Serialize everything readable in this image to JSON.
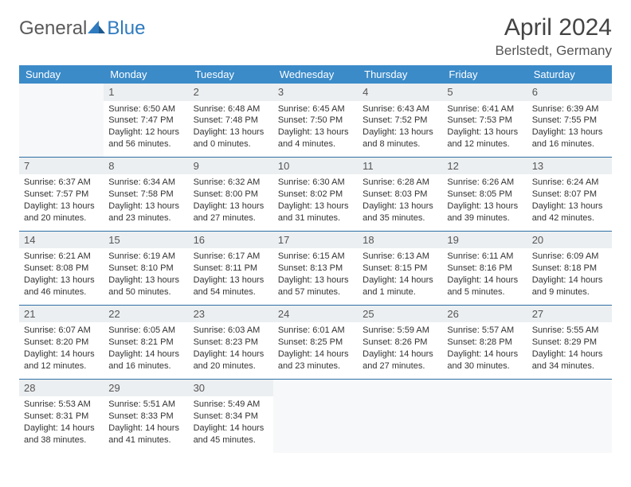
{
  "logo": {
    "text1": "General",
    "text2": "Blue"
  },
  "title": "April 2024",
  "location": "Berlstedt, Germany",
  "colors": {
    "header_bg": "#3b8bc9",
    "header_text": "#ffffff",
    "row_border": "#2f6fa5",
    "daynum_bg": "#eceff1",
    "logo_gray": "#5a5a5a",
    "logo_blue": "#2f7bbf",
    "page_bg": "#ffffff"
  },
  "daysOfWeek": [
    "Sunday",
    "Monday",
    "Tuesday",
    "Wednesday",
    "Thursday",
    "Friday",
    "Saturday"
  ],
  "weeks": [
    [
      null,
      {
        "n": "1",
        "sr": "6:50 AM",
        "ss": "7:47 PM",
        "dl": "12 hours and 56 minutes."
      },
      {
        "n": "2",
        "sr": "6:48 AM",
        "ss": "7:48 PM",
        "dl": "13 hours and 0 minutes."
      },
      {
        "n": "3",
        "sr": "6:45 AM",
        "ss": "7:50 PM",
        "dl": "13 hours and 4 minutes."
      },
      {
        "n": "4",
        "sr": "6:43 AM",
        "ss": "7:52 PM",
        "dl": "13 hours and 8 minutes."
      },
      {
        "n": "5",
        "sr": "6:41 AM",
        "ss": "7:53 PM",
        "dl": "13 hours and 12 minutes."
      },
      {
        "n": "6",
        "sr": "6:39 AM",
        "ss": "7:55 PM",
        "dl": "13 hours and 16 minutes."
      }
    ],
    [
      {
        "n": "7",
        "sr": "6:37 AM",
        "ss": "7:57 PM",
        "dl": "13 hours and 20 minutes."
      },
      {
        "n": "8",
        "sr": "6:34 AM",
        "ss": "7:58 PM",
        "dl": "13 hours and 23 minutes."
      },
      {
        "n": "9",
        "sr": "6:32 AM",
        "ss": "8:00 PM",
        "dl": "13 hours and 27 minutes."
      },
      {
        "n": "10",
        "sr": "6:30 AM",
        "ss": "8:02 PM",
        "dl": "13 hours and 31 minutes."
      },
      {
        "n": "11",
        "sr": "6:28 AM",
        "ss": "8:03 PM",
        "dl": "13 hours and 35 minutes."
      },
      {
        "n": "12",
        "sr": "6:26 AM",
        "ss": "8:05 PM",
        "dl": "13 hours and 39 minutes."
      },
      {
        "n": "13",
        "sr": "6:24 AM",
        "ss": "8:07 PM",
        "dl": "13 hours and 42 minutes."
      }
    ],
    [
      {
        "n": "14",
        "sr": "6:21 AM",
        "ss": "8:08 PM",
        "dl": "13 hours and 46 minutes."
      },
      {
        "n": "15",
        "sr": "6:19 AM",
        "ss": "8:10 PM",
        "dl": "13 hours and 50 minutes."
      },
      {
        "n": "16",
        "sr": "6:17 AM",
        "ss": "8:11 PM",
        "dl": "13 hours and 54 minutes."
      },
      {
        "n": "17",
        "sr": "6:15 AM",
        "ss": "8:13 PM",
        "dl": "13 hours and 57 minutes."
      },
      {
        "n": "18",
        "sr": "6:13 AM",
        "ss": "8:15 PM",
        "dl": "14 hours and 1 minute."
      },
      {
        "n": "19",
        "sr": "6:11 AM",
        "ss": "8:16 PM",
        "dl": "14 hours and 5 minutes."
      },
      {
        "n": "20",
        "sr": "6:09 AM",
        "ss": "8:18 PM",
        "dl": "14 hours and 9 minutes."
      }
    ],
    [
      {
        "n": "21",
        "sr": "6:07 AM",
        "ss": "8:20 PM",
        "dl": "14 hours and 12 minutes."
      },
      {
        "n": "22",
        "sr": "6:05 AM",
        "ss": "8:21 PM",
        "dl": "14 hours and 16 minutes."
      },
      {
        "n": "23",
        "sr": "6:03 AM",
        "ss": "8:23 PM",
        "dl": "14 hours and 20 minutes."
      },
      {
        "n": "24",
        "sr": "6:01 AM",
        "ss": "8:25 PM",
        "dl": "14 hours and 23 minutes."
      },
      {
        "n": "25",
        "sr": "5:59 AM",
        "ss": "8:26 PM",
        "dl": "14 hours and 27 minutes."
      },
      {
        "n": "26",
        "sr": "5:57 AM",
        "ss": "8:28 PM",
        "dl": "14 hours and 30 minutes."
      },
      {
        "n": "27",
        "sr": "5:55 AM",
        "ss": "8:29 PM",
        "dl": "14 hours and 34 minutes."
      }
    ],
    [
      {
        "n": "28",
        "sr": "5:53 AM",
        "ss": "8:31 PM",
        "dl": "14 hours and 38 minutes."
      },
      {
        "n": "29",
        "sr": "5:51 AM",
        "ss": "8:33 PM",
        "dl": "14 hours and 41 minutes."
      },
      {
        "n": "30",
        "sr": "5:49 AM",
        "ss": "8:34 PM",
        "dl": "14 hours and 45 minutes."
      },
      null,
      null,
      null,
      null
    ]
  ],
  "labels": {
    "sunrise": "Sunrise: ",
    "sunset": "Sunset: ",
    "daylight": "Daylight: "
  }
}
